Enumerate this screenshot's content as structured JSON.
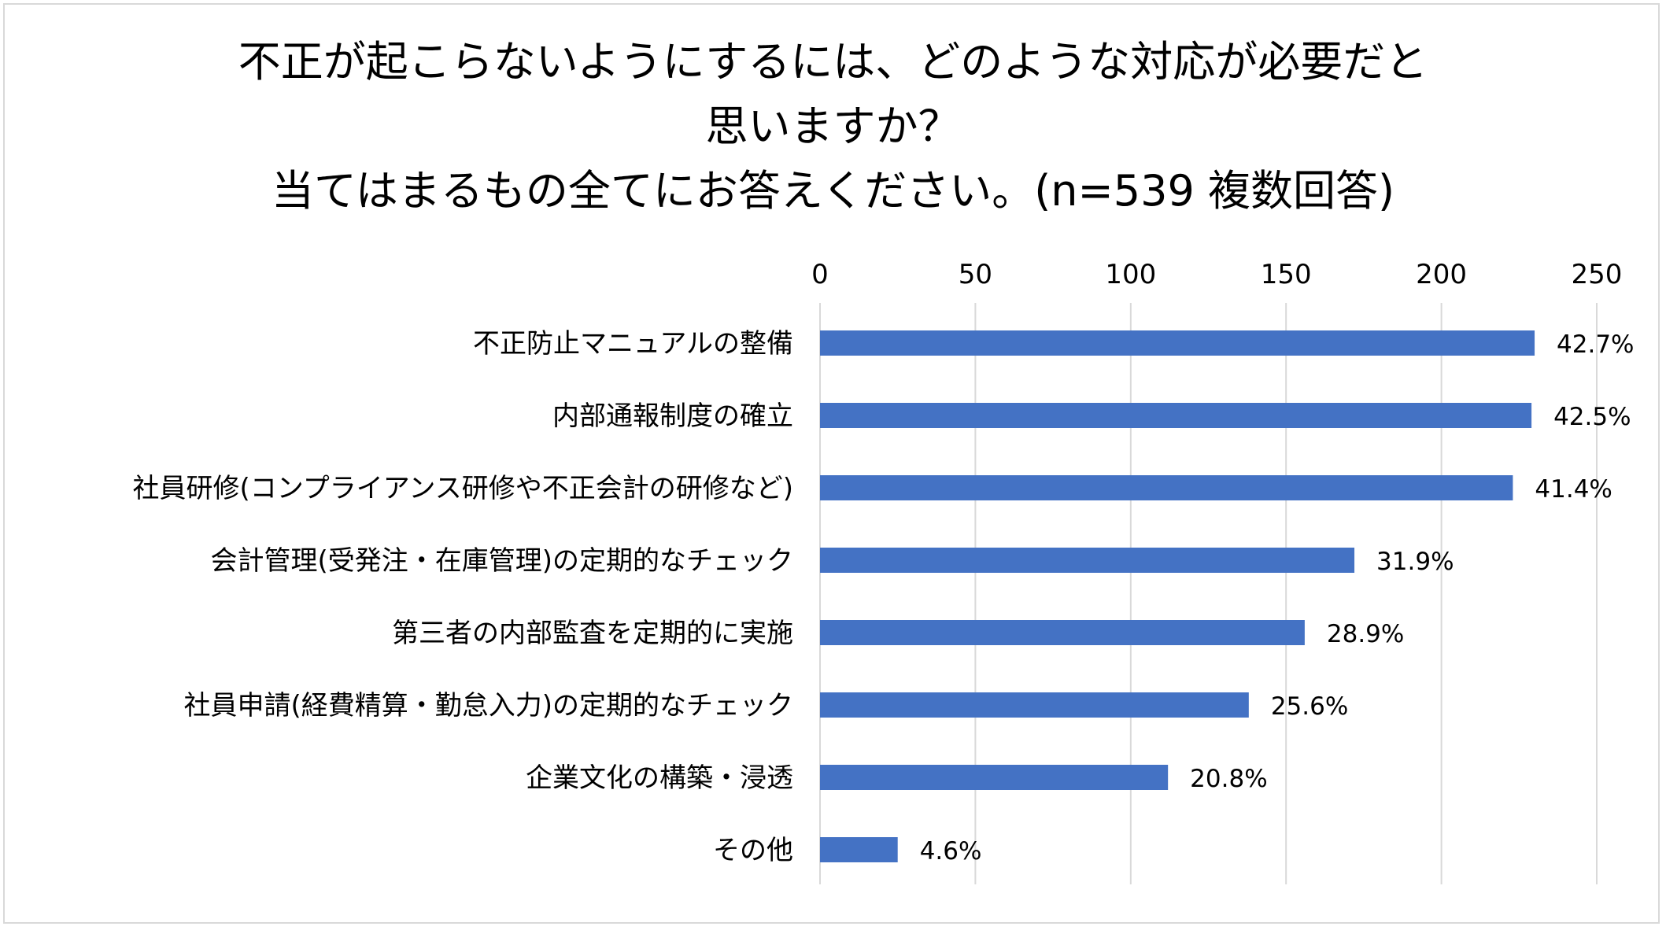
{
  "chart_data": {
    "type": "bar",
    "orientation": "horizontal",
    "title_lines": [
      "不正が起こらないようにするには、どのような対応が必要だと",
      "思いますか？",
      "当てはまるもの全てにお答えください。(n=539 複数回答)"
    ],
    "categories": [
      "不正防止マニュアルの整備",
      "内部通報制度の確立",
      "社員研修(コンプライアンス研修や不正会計の研修など)",
      "会計管理(受発注・在庫管理)の定期的なチェック",
      "第三者の内部監査を定期的に実施",
      "社員申請(経費精算・勤怠入力)の定期的なチェック",
      "企業文化の構築・浸透",
      "その他"
    ],
    "values": [
      230,
      229,
      223,
      172,
      156,
      138,
      112,
      25
    ],
    "data_labels": [
      "42.7%",
      "42.5%",
      "41.4%",
      "31.9%",
      "28.9%",
      "25.6%",
      "20.8%",
      "4.6%"
    ],
    "xlim": [
      0,
      250
    ],
    "xticks": [
      0,
      50,
      100,
      150,
      200,
      250
    ],
    "xtick_labels": [
      "0",
      "50",
      "100",
      "150",
      "200",
      "250"
    ],
    "xaxis_position": "top",
    "grid": true,
    "legend": false,
    "bar_color": "#4472c4",
    "grid_color": "#d9d9d9",
    "text_color": "#000000"
  }
}
